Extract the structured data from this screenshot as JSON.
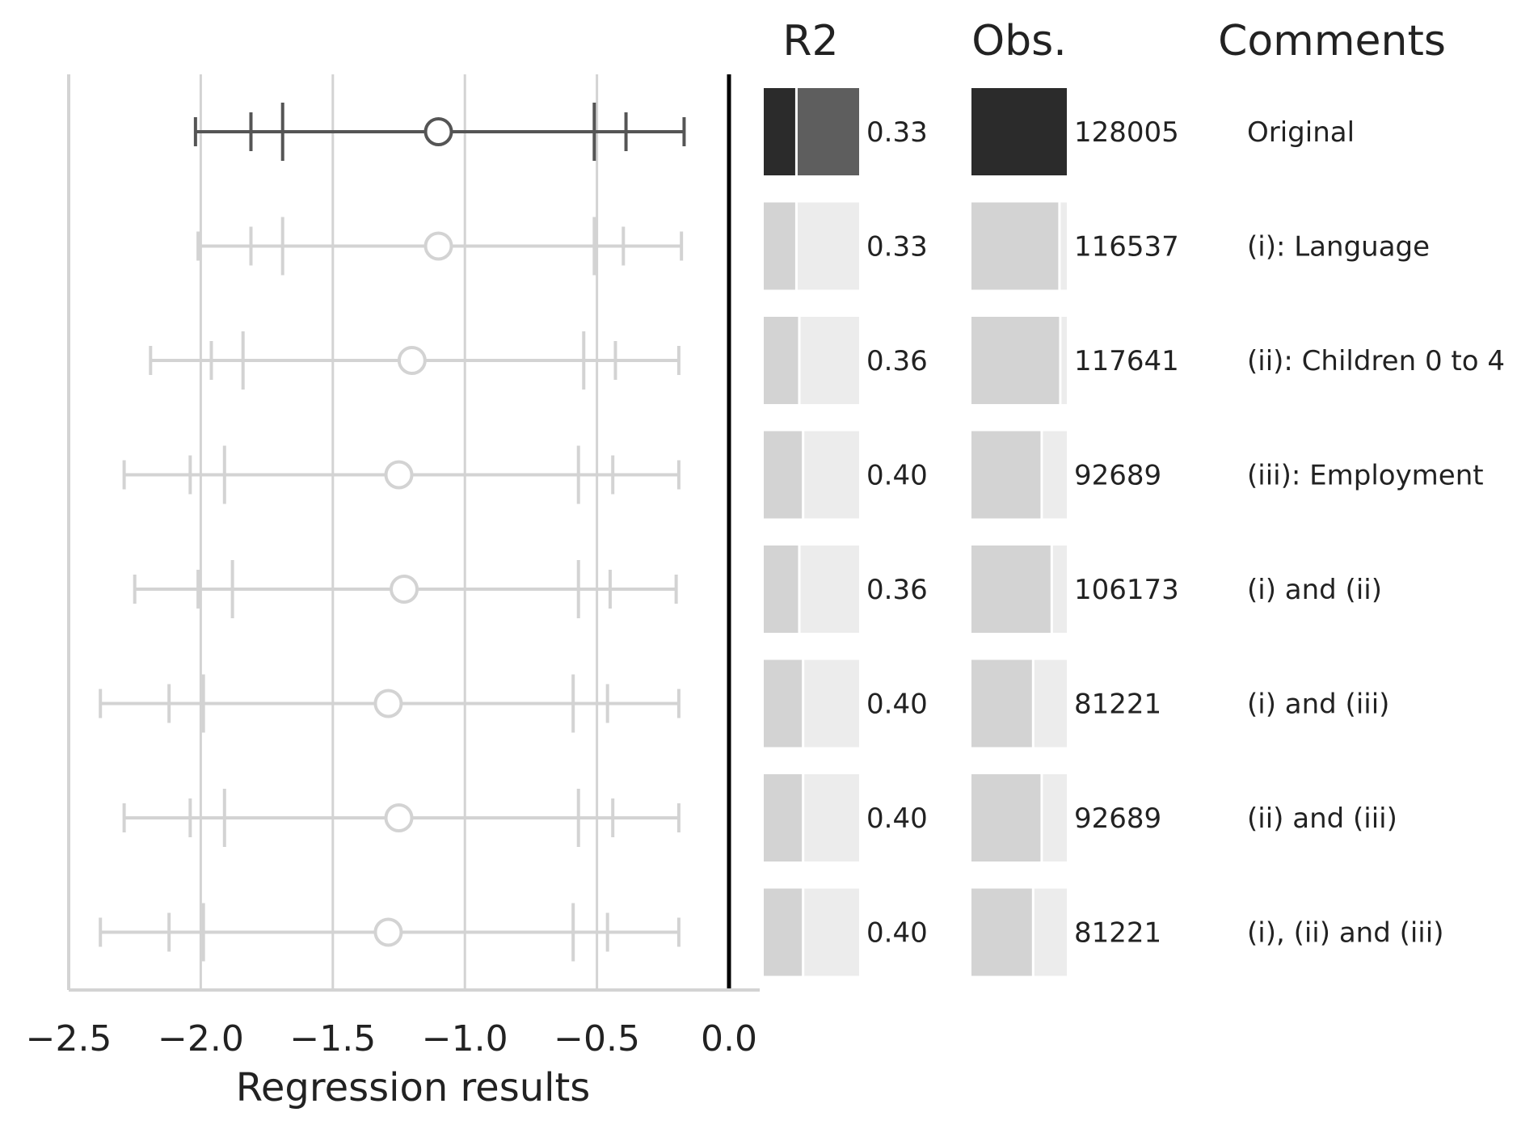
{
  "chart_data": {
    "type": "forest-plot",
    "xlabel": "Regression results",
    "xlim": [
      -2.5,
      0.0
    ],
    "x_ticks": [
      "−2.5",
      "−2.0",
      "−1.5",
      "−1.0",
      "−0.5",
      "0.0"
    ],
    "x_tick_values": [
      -2.5,
      -2.0,
      -1.5,
      -1.0,
      -0.5,
      0.0
    ],
    "reference_line": 0.0,
    "headers": {
      "r2": "R2",
      "obs": "Obs.",
      "comments": "Comments"
    },
    "max_obs": 128005,
    "rows": [
      {
        "estimate": -1.1,
        "ci90": [
          -1.69,
          -0.51
        ],
        "ci95": [
          -1.81,
          -0.39
        ],
        "ci99": [
          -2.02,
          -0.17
        ],
        "r2": 0.33,
        "r2_label": "0.33",
        "obs": 128005,
        "obs_label": "128005",
        "comment": "Original",
        "highlight": true
      },
      {
        "estimate": -1.1,
        "ci90": [
          -1.69,
          -0.51
        ],
        "ci95": [
          -1.81,
          -0.4
        ],
        "ci99": [
          -2.01,
          -0.18
        ],
        "r2": 0.33,
        "r2_label": "0.33",
        "obs": 116537,
        "obs_label": "116537",
        "comment": "(i): Language",
        "highlight": false
      },
      {
        "estimate": -1.2,
        "ci90": [
          -1.84,
          -0.55
        ],
        "ci95": [
          -1.96,
          -0.43
        ],
        "ci99": [
          -2.19,
          -0.19
        ],
        "r2": 0.36,
        "r2_label": "0.36",
        "obs": 117641,
        "obs_label": "117641",
        "comment": "(ii): Children 0 to 4",
        "highlight": false
      },
      {
        "estimate": -1.25,
        "ci90": [
          -1.91,
          -0.57
        ],
        "ci95": [
          -2.04,
          -0.44
        ],
        "ci99": [
          -2.29,
          -0.19
        ],
        "r2": 0.4,
        "r2_label": "0.40",
        "obs": 92689,
        "obs_label": "92689",
        "comment": "(iii): Employment",
        "highlight": false
      },
      {
        "estimate": -1.23,
        "ci90": [
          -1.88,
          -0.57
        ],
        "ci95": [
          -2.01,
          -0.45
        ],
        "ci99": [
          -2.25,
          -0.2
        ],
        "r2": 0.36,
        "r2_label": "0.36",
        "obs": 106173,
        "obs_label": "106173",
        "comment": "(i) and (ii)",
        "highlight": false
      },
      {
        "estimate": -1.29,
        "ci90": [
          -1.99,
          -0.59
        ],
        "ci95": [
          -2.12,
          -0.46
        ],
        "ci99": [
          -2.38,
          -0.19
        ],
        "r2": 0.4,
        "r2_label": "0.40",
        "obs": 81221,
        "obs_label": "81221",
        "comment": "(i) and (iii)",
        "highlight": false
      },
      {
        "estimate": -1.25,
        "ci90": [
          -1.91,
          -0.57
        ],
        "ci95": [
          -2.04,
          -0.44
        ],
        "ci99": [
          -2.29,
          -0.19
        ],
        "r2": 0.4,
        "r2_label": "0.40",
        "obs": 92689,
        "obs_label": "92689",
        "comment": "(ii) and (iii)",
        "highlight": false
      },
      {
        "estimate": -1.29,
        "ci90": [
          -1.99,
          -0.59
        ],
        "ci95": [
          -2.12,
          -0.46
        ],
        "ci99": [
          -2.38,
          -0.19
        ],
        "r2": 0.4,
        "r2_label": "0.40",
        "obs": 81221,
        "obs_label": "81221",
        "comment": "(i), (ii) and (iii)",
        "highlight": false
      }
    ],
    "colors": {
      "highlight_line": "#555555",
      "muted_line": "#d3d3d3",
      "highlight_fill_dark": "#2b2b2b",
      "highlight_fill_light": "#5e5e5e",
      "muted_fill_dark": "#d3d3d3",
      "muted_fill_light": "#ececec",
      "grid": "#d3d3d3",
      "reference": "#000000",
      "axis": "#d3d3d3"
    }
  }
}
